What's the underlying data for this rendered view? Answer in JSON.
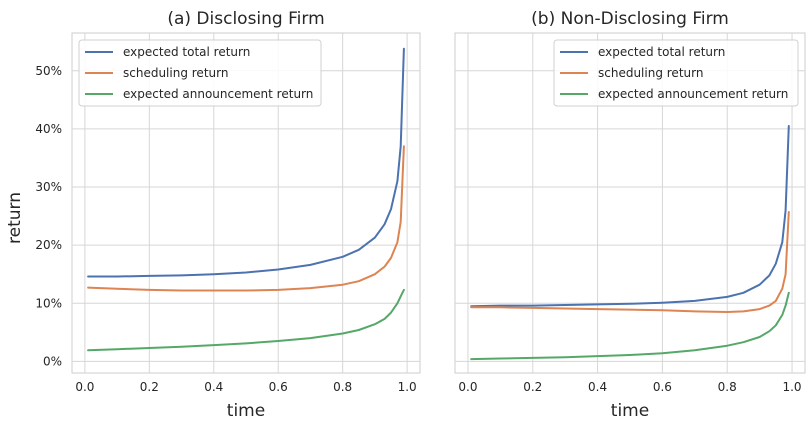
{
  "figure": {
    "ylabel": "return"
  },
  "chart_data": [
    {
      "type": "line",
      "title": "(a) Disclosing Firm",
      "xlabel": "time",
      "ylabel": "return",
      "xlim": [
        -0.04,
        1.04
      ],
      "ylim": [
        -0.02,
        0.565
      ],
      "x_ticks": [
        0.0,
        0.2,
        0.4,
        0.6,
        0.8,
        1.0
      ],
      "x_tick_labels": [
        "0.0",
        "0.2",
        "0.4",
        "0.6",
        "0.8",
        "1.0"
      ],
      "y_ticks": [
        0.0,
        0.1,
        0.2,
        0.3,
        0.4,
        0.5
      ],
      "y_tick_labels": [
        "0%",
        "10%",
        "20%",
        "30%",
        "40%",
        "50%"
      ],
      "grid": true,
      "legend_position": "top-left",
      "x": [
        0.01,
        0.1,
        0.2,
        0.3,
        0.4,
        0.5,
        0.6,
        0.7,
        0.8,
        0.85,
        0.9,
        0.93,
        0.95,
        0.97,
        0.98,
        0.99
      ],
      "series": [
        {
          "name": "expected total return",
          "color": "#4c72b0",
          "values": [
            0.146,
            0.146,
            0.147,
            0.148,
            0.15,
            0.153,
            0.158,
            0.166,
            0.18,
            0.192,
            0.213,
            0.236,
            0.262,
            0.31,
            0.37,
            0.538
          ]
        },
        {
          "name": "scheduling return",
          "color": "#dd8452",
          "values": [
            0.127,
            0.125,
            0.123,
            0.122,
            0.122,
            0.122,
            0.123,
            0.126,
            0.132,
            0.138,
            0.15,
            0.163,
            0.178,
            0.205,
            0.24,
            0.37
          ]
        },
        {
          "name": "expected announcement return",
          "color": "#55a868",
          "values": [
            0.019,
            0.021,
            0.023,
            0.025,
            0.028,
            0.031,
            0.035,
            0.04,
            0.048,
            0.054,
            0.064,
            0.073,
            0.084,
            0.1,
            0.112,
            0.123
          ]
        }
      ]
    },
    {
      "type": "line",
      "title": "(b) Non-Disclosing Firm",
      "xlabel": "time",
      "xlim": [
        -0.04,
        1.04
      ],
      "ylim": [
        -0.02,
        0.565
      ],
      "x_ticks": [
        0.0,
        0.2,
        0.4,
        0.6,
        0.8,
        1.0
      ],
      "x_tick_labels": [
        "0.0",
        "0.2",
        "0.4",
        "0.6",
        "0.8",
        "1.0"
      ],
      "y_ticks": [
        0.0,
        0.1,
        0.2,
        0.3,
        0.4,
        0.5
      ],
      "grid": true,
      "legend_position": "top-right",
      "x": [
        0.01,
        0.1,
        0.2,
        0.3,
        0.4,
        0.5,
        0.6,
        0.7,
        0.8,
        0.85,
        0.9,
        0.93,
        0.95,
        0.97,
        0.98,
        0.99
      ],
      "series": [
        {
          "name": "expected total return",
          "color": "#4c72b0",
          "values": [
            0.095,
            0.096,
            0.096,
            0.097,
            0.098,
            0.099,
            0.101,
            0.104,
            0.111,
            0.118,
            0.132,
            0.148,
            0.168,
            0.205,
            0.26,
            0.405
          ]
        },
        {
          "name": "scheduling return",
          "color": "#dd8452",
          "values": [
            0.093,
            0.093,
            0.092,
            0.091,
            0.09,
            0.089,
            0.088,
            0.086,
            0.085,
            0.086,
            0.09,
            0.096,
            0.104,
            0.125,
            0.15,
            0.257
          ]
        },
        {
          "name": "expected announcement return",
          "color": "#55a868",
          "values": [
            0.004,
            0.005,
            0.006,
            0.007,
            0.009,
            0.011,
            0.014,
            0.019,
            0.027,
            0.033,
            0.042,
            0.052,
            0.062,
            0.08,
            0.096,
            0.118
          ]
        }
      ]
    }
  ]
}
